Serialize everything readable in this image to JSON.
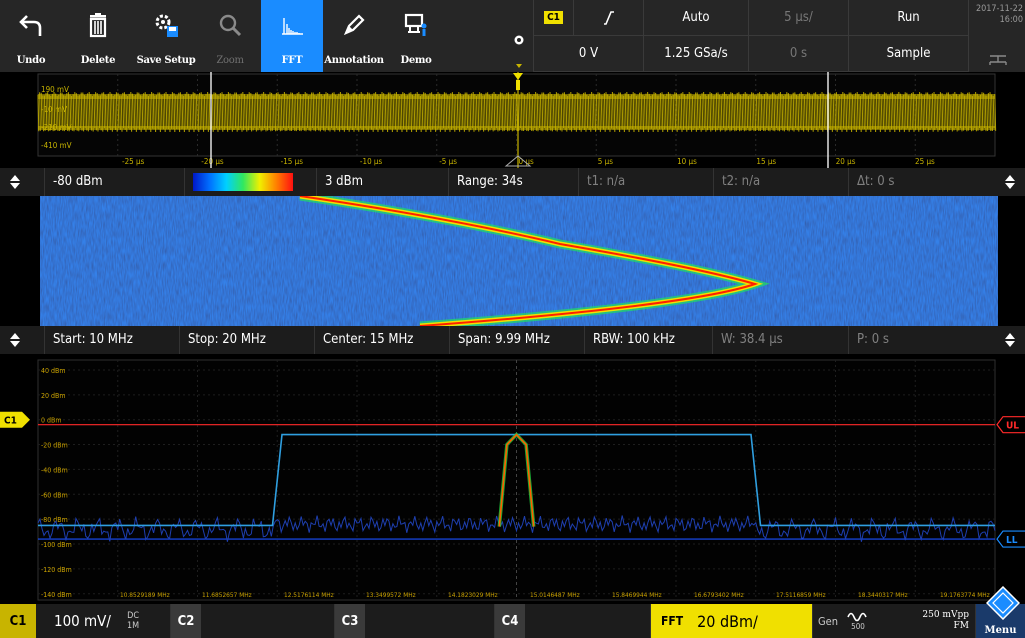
{
  "toolbar": {
    "buttons": [
      {
        "label": "Undo",
        "icon": "undo-icon"
      },
      {
        "label": "Delete",
        "icon": "trash-icon"
      },
      {
        "label": "Save Setup",
        "icon": "save-setup-icon"
      },
      {
        "label": "Zoom",
        "icon": "zoom-icon"
      },
      {
        "label": "FFT",
        "icon": "fft-icon"
      },
      {
        "label": "Annotation",
        "icon": "pen-icon"
      },
      {
        "label": "Demo",
        "icon": "demo-icon"
      }
    ],
    "trigger": {
      "channel": "C1",
      "slope": "∫",
      "mode": "Auto",
      "timebase": "5 µs/",
      "run": "Run",
      "level": "0 V",
      "sample_rate": "1.25 GSa/s",
      "position": "0 s",
      "acquisition": "Sample"
    },
    "date": "2017-11-22",
    "time": "16:00"
  },
  "overview": {
    "y_labels": [
      "190 mV",
      "-10 mV",
      "-210 mV",
      "-410 mV"
    ],
    "x_labels": [
      "-25 µs",
      "-20 µs",
      "-15 µs",
      "-10 µs",
      "-5 µs",
      "0 µs",
      "5 µs",
      "10 µs",
      "15 µs",
      "20 µs",
      "25 µs"
    ],
    "trace_color": "#c8b400"
  },
  "spectrogram_bar": {
    "min": "-80 dBm",
    "max": "3 dBm",
    "range": "Range: 34s",
    "t1": "t1: n/a",
    "t2": "t2: n/a",
    "dt": "Δt: 0 s"
  },
  "spectrum_bar": {
    "start": "Start: 10 MHz",
    "stop": "Stop: 20 MHz",
    "center": "Center: 15 MHz",
    "span": "Span: 9.99 MHz",
    "rbw": "RBW: 100 kHz",
    "w": "W: 38.4 µs",
    "p": "P: 0 s"
  },
  "spectrum": {
    "channel_marker": "C1",
    "ul": "UL",
    "ll": "LL",
    "trace_color": "#3d8fd6",
    "mask_color": "#2f9fe0",
    "limit_color": "#ff2a2a"
  },
  "chart_data": {
    "type": "line",
    "xlabel": "",
    "ylabel": "",
    "x_tick_labels": [
      "10.8529189 MHz",
      "11.6852657 MHz",
      "12.5176114 MHz",
      "13.3499572 MHz",
      "14.1823029 MHz",
      "15.0146487 MHz",
      "15.8469944 MHz",
      "16.6793402 MHz",
      "17.5116859 MHz",
      "18.3440317 MHz",
      "19.1763774 MHz"
    ],
    "y_tick_labels": [
      "40 dBm",
      "20 dBm",
      "0 dBm",
      "-20 dBm",
      "-40 dBm",
      "-60 dBm",
      "-80 dBm",
      "-100 dBm",
      "-120 dBm",
      "-140 dBm"
    ],
    "ylim": [
      -145,
      48
    ],
    "xlim": [
      10,
      20
    ],
    "series": [
      {
        "name": "",
        "x": [
          10.0,
          12.45,
          12.55,
          14.9,
          15.0,
          15.1,
          17.45,
          17.55,
          20.0
        ],
        "y": [
          -85,
          -85,
          -12,
          -12,
          -12,
          -12,
          -12,
          -85,
          -85
        ]
      }
    ],
    "signal": {
      "x": [
        14.82,
        14.9,
        15.0,
        15.1,
        15.18
      ],
      "y": [
        -86,
        -20,
        -12,
        -20,
        -86
      ]
    },
    "upper_limit": -4,
    "lower_limit": -96
  },
  "bottombar": {
    "c1": "C1",
    "c1_scale": "100 mV/",
    "c1_coupling": "DC",
    "c1_imp": "1M",
    "c2": "C2",
    "c3": "C3",
    "c4": "C4",
    "fft": "FFT",
    "fft_scale": "20 dBm/",
    "gen": "Gen",
    "gen_wave": "500",
    "gen_amp": "250 mVpp",
    "gen_mod": "FM",
    "menu": "Menu"
  }
}
